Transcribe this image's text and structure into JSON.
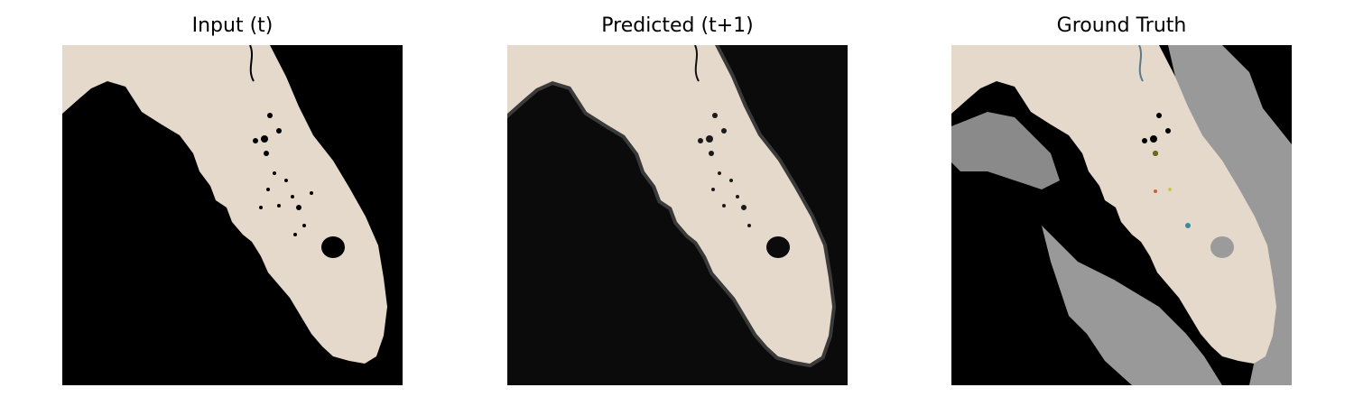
{
  "panels": [
    {
      "title": "Input (t)",
      "ocean_color": "#000000",
      "land_color": "#e5d9cc",
      "lake_color": "#000000"
    },
    {
      "title": "Predicted (t+1)",
      "ocean_color": "#0b0b0b",
      "land_color": "#e5d9cc",
      "lake_color": "#0b0b0b"
    },
    {
      "title": "Ground Truth",
      "ocean_color": "#000000",
      "land_color": "#e5d9cc",
      "lake_color": "#9b9b9b",
      "cloud_color": "#999999"
    }
  ]
}
